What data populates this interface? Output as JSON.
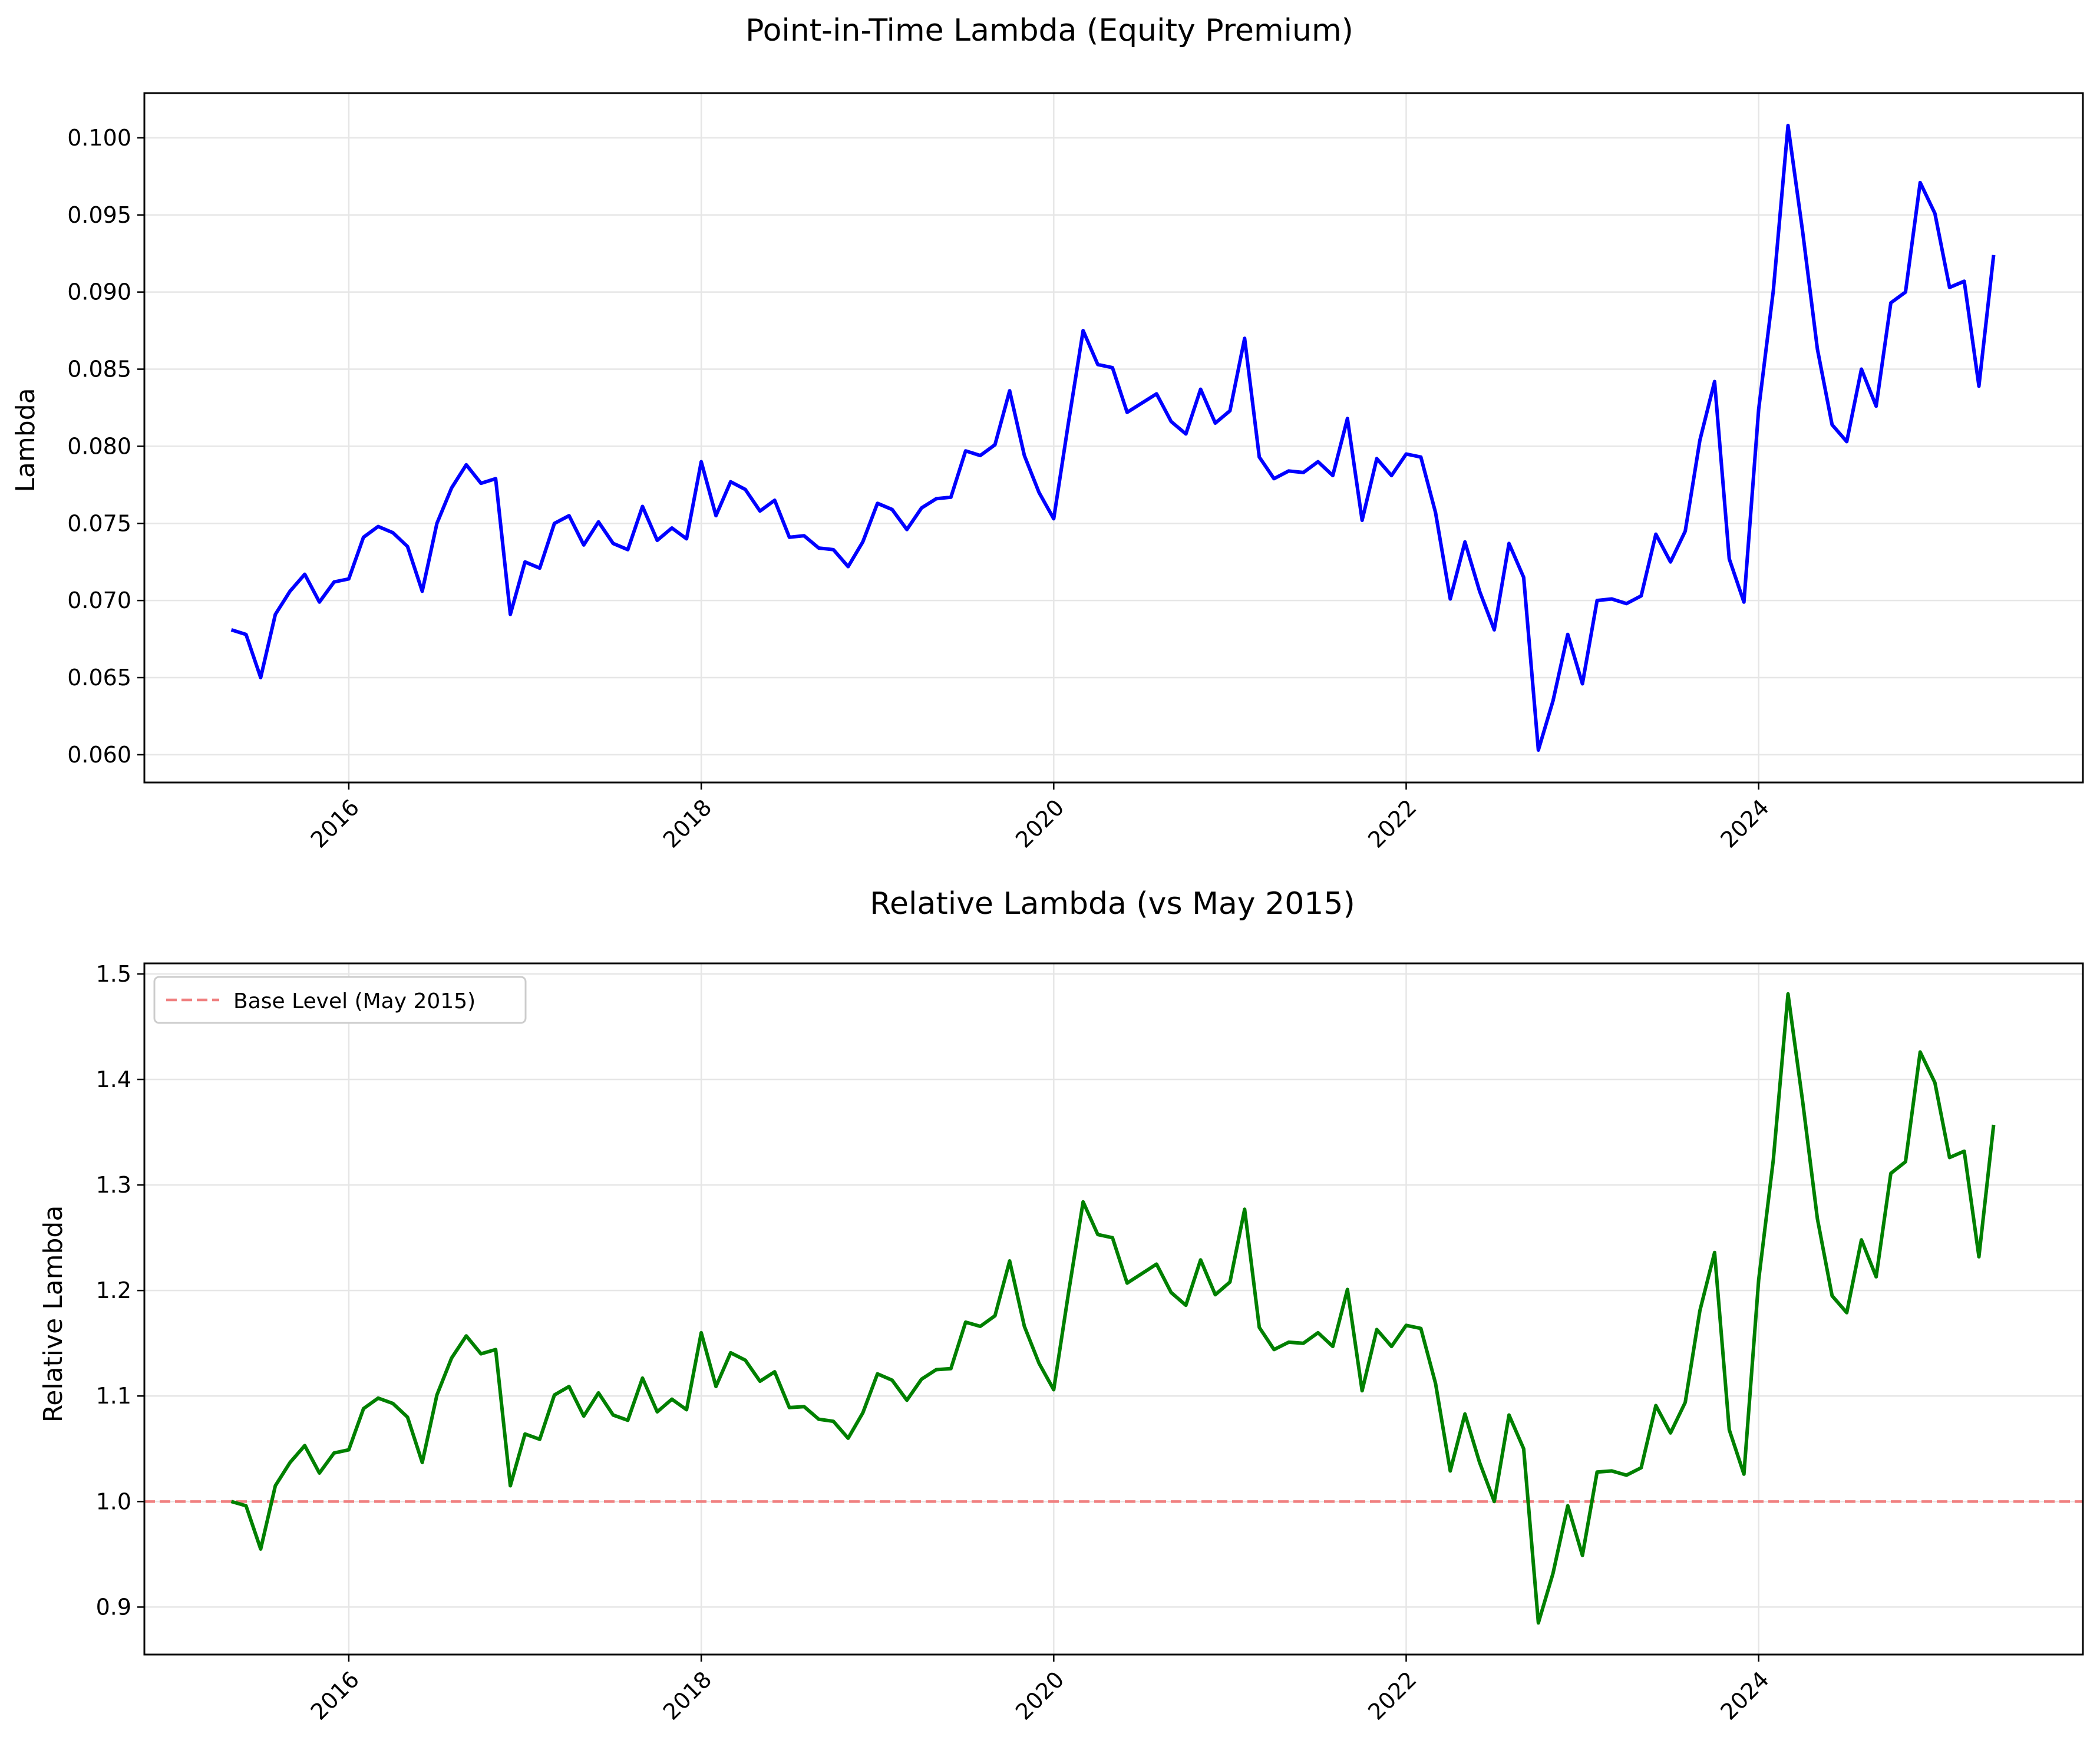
{
  "colors": {
    "top_line": "#0000ff",
    "bottom_line": "#008000",
    "base_line": "#f08080",
    "grid": "#e6e6e6",
    "axis": "#000000"
  },
  "chart_data": [
    {
      "type": "line",
      "title": "Point-in-Time Lambda (Equity Premium)",
      "xlabel": "",
      "ylabel": "Lambda",
      "xlim": [
        2014.84,
        2025.84
      ],
      "ylim": [
        0.0582,
        0.1029
      ],
      "xticks": [
        "2016",
        "2018",
        "2020",
        "2022",
        "2024"
      ],
      "yticks": [
        "0.060",
        "0.065",
        "0.070",
        "0.075",
        "0.080",
        "0.085",
        "0.090",
        "0.095",
        "0.100"
      ],
      "grid": true,
      "series": [
        {
          "x": [
            "2015-05",
            "2015-06",
            "2015-07",
            "2015-08",
            "2015-09",
            "2015-10",
            "2015-11",
            "2015-12",
            "2016-01",
            "2016-02",
            "2016-03",
            "2016-04",
            "2016-05",
            "2016-06",
            "2016-07",
            "2016-08",
            "2016-09",
            "2016-10",
            "2016-11",
            "2016-12",
            "2017-01",
            "2017-02",
            "2017-03",
            "2017-04",
            "2017-05",
            "2017-06",
            "2017-07",
            "2017-08",
            "2017-09",
            "2017-10",
            "2017-11",
            "2017-12",
            "2018-01",
            "2018-02",
            "2018-03",
            "2018-04",
            "2018-05",
            "2018-06",
            "2018-07",
            "2018-08",
            "2018-09",
            "2018-10",
            "2018-11",
            "2018-12",
            "2019-01",
            "2019-02",
            "2019-03",
            "2019-04",
            "2019-05",
            "2019-06",
            "2019-07",
            "2019-08",
            "2019-09",
            "2019-10",
            "2019-11",
            "2019-12",
            "2020-01",
            "2020-02",
            "2020-03",
            "2020-04",
            "2020-05",
            "2020-06",
            "2020-07",
            "2020-08",
            "2020-09",
            "2020-10",
            "2020-11",
            "2020-12",
            "2021-01",
            "2021-02",
            "2021-03",
            "2021-04",
            "2021-05",
            "2021-06",
            "2021-07",
            "2021-08",
            "2021-09",
            "2021-10",
            "2021-11",
            "2021-12",
            "2022-01",
            "2022-02",
            "2022-03",
            "2022-04",
            "2022-05",
            "2022-06",
            "2022-07",
            "2022-08",
            "2022-09",
            "2022-10",
            "2022-11",
            "2022-12",
            "2023-01",
            "2023-02",
            "2023-03",
            "2023-04",
            "2023-05",
            "2023-06",
            "2023-07",
            "2023-08",
            "2023-09",
            "2023-10",
            "2023-11",
            "2023-12",
            "2024-01",
            "2024-02",
            "2024-03",
            "2024-04",
            "2024-05",
            "2024-06",
            "2024-07",
            "2024-08",
            "2024-09",
            "2024-10",
            "2024-11",
            "2024-12",
            "2025-01",
            "2025-02",
            "2025-03",
            "2025-04",
            "2025-05"
          ],
          "values": [
            0.0681,
            0.0678,
            0.065,
            0.0691,
            0.0706,
            0.0717,
            0.0699,
            0.0712,
            0.0714,
            0.0741,
            0.0748,
            0.0744,
            0.0735,
            0.0706,
            0.075,
            0.0773,
            0.0788,
            0.0776,
            0.0779,
            0.0691,
            0.0725,
            0.0721,
            0.075,
            0.0755,
            0.0736,
            0.0751,
            0.0737,
            0.0733,
            0.0761,
            0.0739,
            0.0747,
            0.074,
            0.079,
            0.0755,
            0.0777,
            0.0772,
            0.0758,
            0.0765,
            0.0741,
            0.0742,
            0.0734,
            0.0733,
            0.0722,
            0.0738,
            0.0763,
            0.0759,
            0.0746,
            0.076,
            0.0766,
            0.0767,
            0.0797,
            0.0794,
            0.0801,
            0.0836,
            0.0794,
            0.077,
            0.0753,
            0.0815,
            0.0875,
            0.0853,
            0.0851,
            0.0822,
            0.0828,
            0.0834,
            0.0816,
            0.0808,
            0.0837,
            0.0815,
            0.0823,
            0.087,
            0.0793,
            0.0779,
            0.0784,
            0.0783,
            0.079,
            0.0781,
            0.0818,
            0.0752,
            0.0792,
            0.0781,
            0.0795,
            0.0793,
            0.0757,
            0.0701,
            0.0738,
            0.0706,
            0.0681,
            0.0737,
            0.0715,
            0.0603,
            0.0635,
            0.0678,
            0.0646,
            0.07,
            0.0701,
            0.0698,
            0.0703,
            0.0743,
            0.0725,
            0.0745,
            0.0804,
            0.0842,
            0.0727,
            0.0699,
            0.0824,
            0.0901,
            0.1008,
            0.0939,
            0.0863,
            0.0814,
            0.0803,
            0.085,
            0.0826,
            0.0893,
            0.09,
            0.0971,
            0.0951,
            0.0903,
            0.0907,
            0.0839,
            0.0924
          ]
        }
      ]
    },
    {
      "type": "line",
      "title": "Relative Lambda (vs May 2015)",
      "xlabel": "",
      "ylabel": "Relative Lambda",
      "xlim": [
        2014.84,
        2025.84
      ],
      "ylim": [
        0.855,
        1.51
      ],
      "xticks": [
        "2016",
        "2018",
        "2020",
        "2022",
        "2024"
      ],
      "yticks": [
        "0.9",
        "1.0",
        "1.1",
        "1.2",
        "1.3",
        "1.4",
        "1.5"
      ],
      "grid": true,
      "legend": {
        "placement": "top-left",
        "entries": [
          "Base Level (May 2015)"
        ]
      },
      "reference_line": {
        "y": 1.0,
        "style": "dashed",
        "name": "Base Level (May 2015)"
      },
      "series": [
        {
          "x": [
            "2015-05",
            "2015-06",
            "2015-07",
            "2015-08",
            "2015-09",
            "2015-10",
            "2015-11",
            "2015-12",
            "2016-01",
            "2016-02",
            "2016-03",
            "2016-04",
            "2016-05",
            "2016-06",
            "2016-07",
            "2016-08",
            "2016-09",
            "2016-10",
            "2016-11",
            "2016-12",
            "2017-01",
            "2017-02",
            "2017-03",
            "2017-04",
            "2017-05",
            "2017-06",
            "2017-07",
            "2017-08",
            "2017-09",
            "2017-10",
            "2017-11",
            "2017-12",
            "2018-01",
            "2018-02",
            "2018-03",
            "2018-04",
            "2018-05",
            "2018-06",
            "2018-07",
            "2018-08",
            "2018-09",
            "2018-10",
            "2018-11",
            "2018-12",
            "2019-01",
            "2019-02",
            "2019-03",
            "2019-04",
            "2019-05",
            "2019-06",
            "2019-07",
            "2019-08",
            "2019-09",
            "2019-10",
            "2019-11",
            "2019-12",
            "2020-01",
            "2020-02",
            "2020-03",
            "2020-04",
            "2020-05",
            "2020-06",
            "2020-07",
            "2020-08",
            "2020-09",
            "2020-10",
            "2020-11",
            "2020-12",
            "2021-01",
            "2021-02",
            "2021-03",
            "2021-04",
            "2021-05",
            "2021-06",
            "2021-07",
            "2021-08",
            "2021-09",
            "2021-10",
            "2021-11",
            "2021-12",
            "2022-01",
            "2022-02",
            "2022-03",
            "2022-04",
            "2022-05",
            "2022-06",
            "2022-07",
            "2022-08",
            "2022-09",
            "2022-10",
            "2022-11",
            "2022-12",
            "2023-01",
            "2023-02",
            "2023-03",
            "2023-04",
            "2023-05",
            "2023-06",
            "2023-07",
            "2023-08",
            "2023-09",
            "2023-10",
            "2023-11",
            "2023-12",
            "2024-01",
            "2024-02",
            "2024-03",
            "2024-04",
            "2024-05",
            "2024-06",
            "2024-07",
            "2024-08",
            "2024-09",
            "2024-10",
            "2024-11",
            "2024-12",
            "2025-01",
            "2025-02",
            "2025-03",
            "2025-04",
            "2025-05"
          ],
          "values": [
            1.0,
            0.996,
            0.955,
            1.015,
            1.037,
            1.053,
            1.027,
            1.046,
            1.049,
            1.088,
            1.098,
            1.093,
            1.08,
            1.037,
            1.101,
            1.136,
            1.157,
            1.14,
            1.144,
            1.015,
            1.064,
            1.059,
            1.101,
            1.109,
            1.081,
            1.103,
            1.082,
            1.077,
            1.117,
            1.085,
            1.097,
            1.087,
            1.16,
            1.109,
            1.141,
            1.134,
            1.114,
            1.123,
            1.089,
            1.09,
            1.078,
            1.076,
            1.06,
            1.084,
            1.121,
            1.115,
            1.096,
            1.116,
            1.125,
            1.126,
            1.17,
            1.166,
            1.176,
            1.228,
            1.166,
            1.131,
            1.106,
            1.197,
            1.284,
            1.253,
            1.25,
            1.207,
            1.216,
            1.225,
            1.198,
            1.186,
            1.229,
            1.196,
            1.208,
            1.277,
            1.165,
            1.144,
            1.151,
            1.15,
            1.16,
            1.147,
            1.201,
            1.105,
            1.163,
            1.147,
            1.167,
            1.164,
            1.112,
            1.029,
            1.083,
            1.037,
            1.0,
            1.082,
            1.05,
            0.885,
            0.932,
            0.996,
            0.949,
            1.028,
            1.029,
            1.025,
            1.032,
            1.091,
            1.065,
            1.094,
            1.181,
            1.236,
            1.068,
            1.026,
            1.21,
            1.324,
            1.481,
            1.379,
            1.268,
            1.195,
            1.179,
            1.248,
            1.213,
            1.311,
            1.322,
            1.426,
            1.397,
            1.326,
            1.332,
            1.232,
            1.357
          ]
        }
      ]
    }
  ]
}
